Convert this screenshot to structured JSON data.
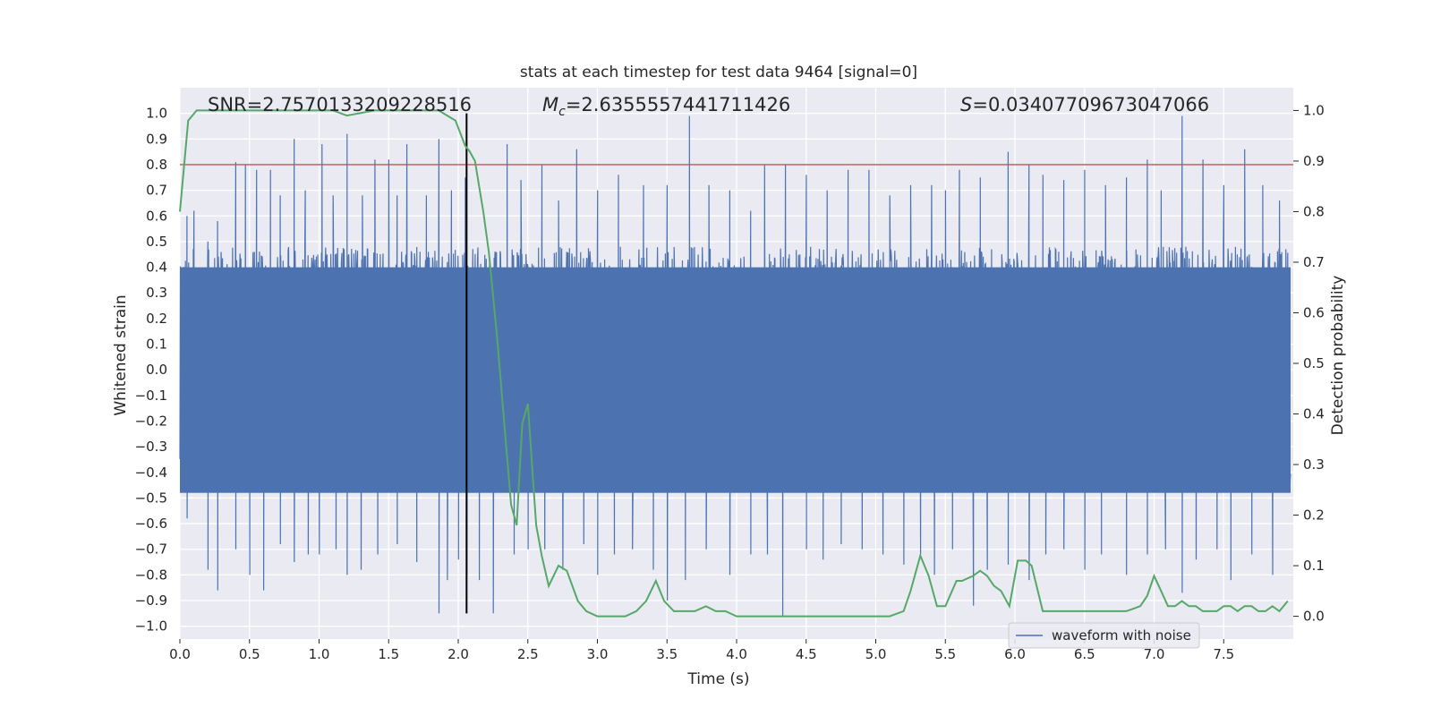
{
  "chart_data": {
    "type": "line",
    "title": "stats at each timestep for test data 9464 [signal=0]",
    "xlabel": "Time (s)",
    "ylabel_left": "Whitened strain",
    "ylabel_right": "Detection probability",
    "xlim": [
      0.0,
      8.0
    ],
    "ylim_left": [
      -1.05,
      1.1
    ],
    "ylim_right": [
      -0.045,
      1.045
    ],
    "x_ticks": [
      "0.0",
      "0.5",
      "1.0",
      "1.5",
      "2.0",
      "2.5",
      "3.0",
      "3.5",
      "4.0",
      "4.5",
      "5.0",
      "5.5",
      "6.0",
      "6.5",
      "7.0",
      "7.5"
    ],
    "x_tick_values": [
      0.0,
      0.5,
      1.0,
      1.5,
      2.0,
      2.5,
      3.0,
      3.5,
      4.0,
      4.5,
      5.0,
      5.5,
      6.0,
      6.5,
      7.0,
      7.5
    ],
    "y_left_ticks": [
      "1.0",
      "0.9",
      "0.8",
      "0.7",
      "0.6",
      "0.5",
      "0.4",
      "0.3",
      "0.2",
      "0.1",
      "0.0",
      "−0.1",
      "−0.2",
      "−0.3",
      "−0.4",
      "−0.5",
      "−0.6",
      "−0.7",
      "−0.8",
      "−0.9",
      "−1.0"
    ],
    "y_left_tick_values": [
      1.0,
      0.9,
      0.8,
      0.7,
      0.6,
      0.5,
      0.4,
      0.3,
      0.2,
      0.1,
      0.0,
      -0.1,
      -0.2,
      -0.3,
      -0.4,
      -0.5,
      -0.6,
      -0.7,
      -0.8,
      -0.9,
      -1.0
    ],
    "y_right_ticks": [
      "1.0",
      "0.9",
      "0.8",
      "0.7",
      "0.6",
      "0.5",
      "0.4",
      "0.3",
      "0.2",
      "0.1",
      "0.0"
    ],
    "y_right_tick_values": [
      1.0,
      0.9,
      0.8,
      0.7,
      0.6,
      0.5,
      0.4,
      0.3,
      0.2,
      0.1,
      0.0
    ],
    "annotations": {
      "snr": "SNR=2.7570133209228516",
      "mc_symbol": "M",
      "mc_subscript": "c",
      "mc_value": "=2.6355557441711426",
      "s_symbol": "S",
      "s_value": "=0.03407709673047066"
    },
    "series": [
      {
        "name": "waveform with noise",
        "axis": "left",
        "color": "#4c72b0",
        "description_bands": "dense noise; typical band approx -0.5..0.5, peaks to 0.99 and -0.95",
        "peaks_x": [
          0.05,
          0.1,
          0.2,
          0.27,
          0.4,
          0.47,
          0.55,
          0.65,
          0.72,
          0.82,
          0.9,
          1.02,
          1.1,
          1.2,
          1.31,
          1.4,
          1.5,
          1.56,
          1.63,
          1.77,
          1.86,
          1.95,
          2.05,
          2.35,
          2.45,
          2.6,
          2.72,
          2.85,
          3.0,
          3.15,
          3.33,
          3.5,
          3.66,
          3.8,
          3.95,
          4.1,
          4.2,
          4.35,
          4.5,
          4.65,
          4.8,
          4.95,
          5.1,
          5.25,
          5.4,
          5.5,
          5.6,
          5.75,
          5.95,
          6.1,
          6.2,
          6.35,
          6.5,
          6.65,
          6.8,
          6.95,
          7.05,
          7.2,
          7.35,
          7.5,
          7.65,
          7.78,
          7.9
        ],
        "peaks_y": [
          0.6,
          0.62,
          0.5,
          0.58,
          0.81,
          0.8,
          0.78,
          0.78,
          0.68,
          0.9,
          0.7,
          0.88,
          0.68,
          0.92,
          0.68,
          0.82,
          0.82,
          0.68,
          0.88,
          0.68,
          0.9,
          0.7,
          0.75,
          0.88,
          0.74,
          0.8,
          0.66,
          0.86,
          0.7,
          0.76,
          0.72,
          0.72,
          0.99,
          0.72,
          0.7,
          0.62,
          0.8,
          0.8,
          0.76,
          0.7,
          0.78,
          0.78,
          0.68,
          0.72,
          0.72,
          0.7,
          0.78,
          0.75,
          0.85,
          0.8,
          0.76,
          0.74,
          0.78,
          0.72,
          0.75,
          0.82,
          0.7,
          0.99,
          0.82,
          0.72,
          0.86,
          0.72,
          0.66
        ],
        "troughs_x": [
          0.05,
          0.2,
          0.27,
          0.4,
          0.5,
          0.6,
          0.72,
          0.82,
          0.92,
          1.0,
          1.12,
          1.2,
          1.3,
          1.42,
          1.56,
          1.7,
          1.86,
          1.92,
          2.0,
          2.06,
          2.15,
          2.25,
          2.4,
          2.5,
          2.62,
          2.75,
          2.9,
          3.0,
          3.12,
          3.25,
          3.4,
          3.5,
          3.63,
          3.78,
          3.95,
          4.1,
          4.22,
          4.33,
          4.5,
          4.62,
          4.75,
          4.9,
          5.05,
          5.2,
          5.32,
          5.42,
          5.55,
          5.7,
          5.8,
          5.95,
          6.1,
          6.22,
          6.35,
          6.5,
          6.62,
          6.8,
          6.95,
          7.08,
          7.2,
          7.3,
          7.45,
          7.55,
          7.7,
          7.85
        ],
        "troughs_y": [
          -0.58,
          -0.78,
          -0.86,
          -0.7,
          -0.8,
          -0.86,
          -0.68,
          -0.75,
          -0.72,
          -0.72,
          -0.7,
          -0.8,
          -0.78,
          -0.72,
          -0.68,
          -0.75,
          -0.95,
          -0.82,
          -0.74,
          -0.8,
          -0.82,
          -0.95,
          -0.72,
          -0.7,
          -0.7,
          -0.78,
          -0.68,
          -0.8,
          -0.72,
          -0.7,
          -0.78,
          -0.9,
          -0.82,
          -0.7,
          -0.8,
          -0.72,
          -0.72,
          -0.96,
          -0.7,
          -0.74,
          -0.68,
          -0.7,
          -0.72,
          -0.76,
          -0.72,
          -0.8,
          -0.7,
          -0.92,
          -0.78,
          -0.76,
          -0.82,
          -0.72,
          -0.7,
          -0.78,
          -0.72,
          -0.8,
          -0.72,
          -0.7,
          -0.87,
          -0.74,
          -0.7,
          -0.82,
          -0.72,
          -0.8
        ]
      },
      {
        "name": "detection probability",
        "axis": "right",
        "color": "#55a868",
        "x": [
          0.0,
          0.06,
          0.12,
          0.2,
          0.3,
          0.5,
          0.7,
          0.9,
          1.0,
          1.1,
          1.2,
          1.4,
          1.6,
          1.8,
          1.86,
          1.92,
          1.98,
          2.05,
          2.08,
          2.12,
          2.18,
          2.22,
          2.28,
          2.34,
          2.38,
          2.42,
          2.46,
          2.5,
          2.53,
          2.56,
          2.6,
          2.65,
          2.72,
          2.78,
          2.86,
          2.92,
          3.0,
          3.1,
          3.2,
          3.28,
          3.35,
          3.42,
          3.48,
          3.55,
          3.62,
          3.7,
          3.78,
          3.85,
          3.92,
          4.0,
          4.08,
          4.2,
          4.3,
          4.4,
          4.5,
          4.6,
          4.8,
          5.0,
          5.1,
          5.2,
          5.25,
          5.32,
          5.38,
          5.44,
          5.5,
          5.58,
          5.62,
          5.7,
          5.75,
          5.8,
          5.85,
          5.9,
          5.96,
          6.02,
          6.08,
          6.12,
          6.2,
          6.25,
          6.32,
          6.4,
          6.45,
          6.5,
          6.6,
          6.7,
          6.8,
          6.9,
          6.95,
          7.0,
          7.05,
          7.1,
          7.15,
          7.2,
          7.25,
          7.3,
          7.35,
          7.4,
          7.45,
          7.5,
          7.55,
          7.6,
          7.65,
          7.7,
          7.75,
          7.8,
          7.85,
          7.9,
          7.96
        ],
        "y": [
          0.8,
          0.98,
          1.0,
          1.0,
          1.0,
          1.0,
          1.0,
          1.0,
          1.0,
          1.0,
          0.99,
          1.0,
          1.0,
          1.0,
          1.0,
          0.99,
          0.98,
          0.93,
          0.92,
          0.9,
          0.8,
          0.72,
          0.55,
          0.35,
          0.22,
          0.18,
          0.38,
          0.42,
          0.3,
          0.18,
          0.12,
          0.06,
          0.1,
          0.09,
          0.03,
          0.01,
          0.0,
          0.0,
          0.0,
          0.01,
          0.03,
          0.07,
          0.03,
          0.01,
          0.01,
          0.01,
          0.02,
          0.01,
          0.01,
          0.0,
          0.0,
          0.0,
          0.0,
          0.0,
          0.0,
          0.0,
          0.0,
          0.0,
          0.0,
          0.01,
          0.05,
          0.12,
          0.08,
          0.02,
          0.02,
          0.07,
          0.07,
          0.08,
          0.09,
          0.08,
          0.06,
          0.05,
          0.02,
          0.11,
          0.11,
          0.1,
          0.01,
          0.01,
          0.01,
          0.01,
          0.01,
          0.01,
          0.01,
          0.01,
          0.01,
          0.02,
          0.04,
          0.08,
          0.05,
          0.02,
          0.02,
          0.03,
          0.02,
          0.02,
          0.01,
          0.01,
          0.01,
          0.02,
          0.02,
          0.01,
          0.02,
          0.02,
          0.01,
          0.01,
          0.02,
          0.01,
          0.03
        ]
      }
    ],
    "hlines": [
      {
        "y": 0.8,
        "axis": "left",
        "color": "#c44e52",
        "name": "threshold-line"
      }
    ],
    "vlines": [
      {
        "x": 2.06,
        "axis": "left",
        "ymin": -0.95,
        "ymax": 1.0,
        "color": "#000000",
        "name": "marker-line"
      }
    ],
    "legend": {
      "position": "bottom-right",
      "entries": [
        {
          "label": "waveform with noise",
          "color": "#4c72b0"
        }
      ]
    },
    "grid": true,
    "background": "#eaeaf2"
  }
}
